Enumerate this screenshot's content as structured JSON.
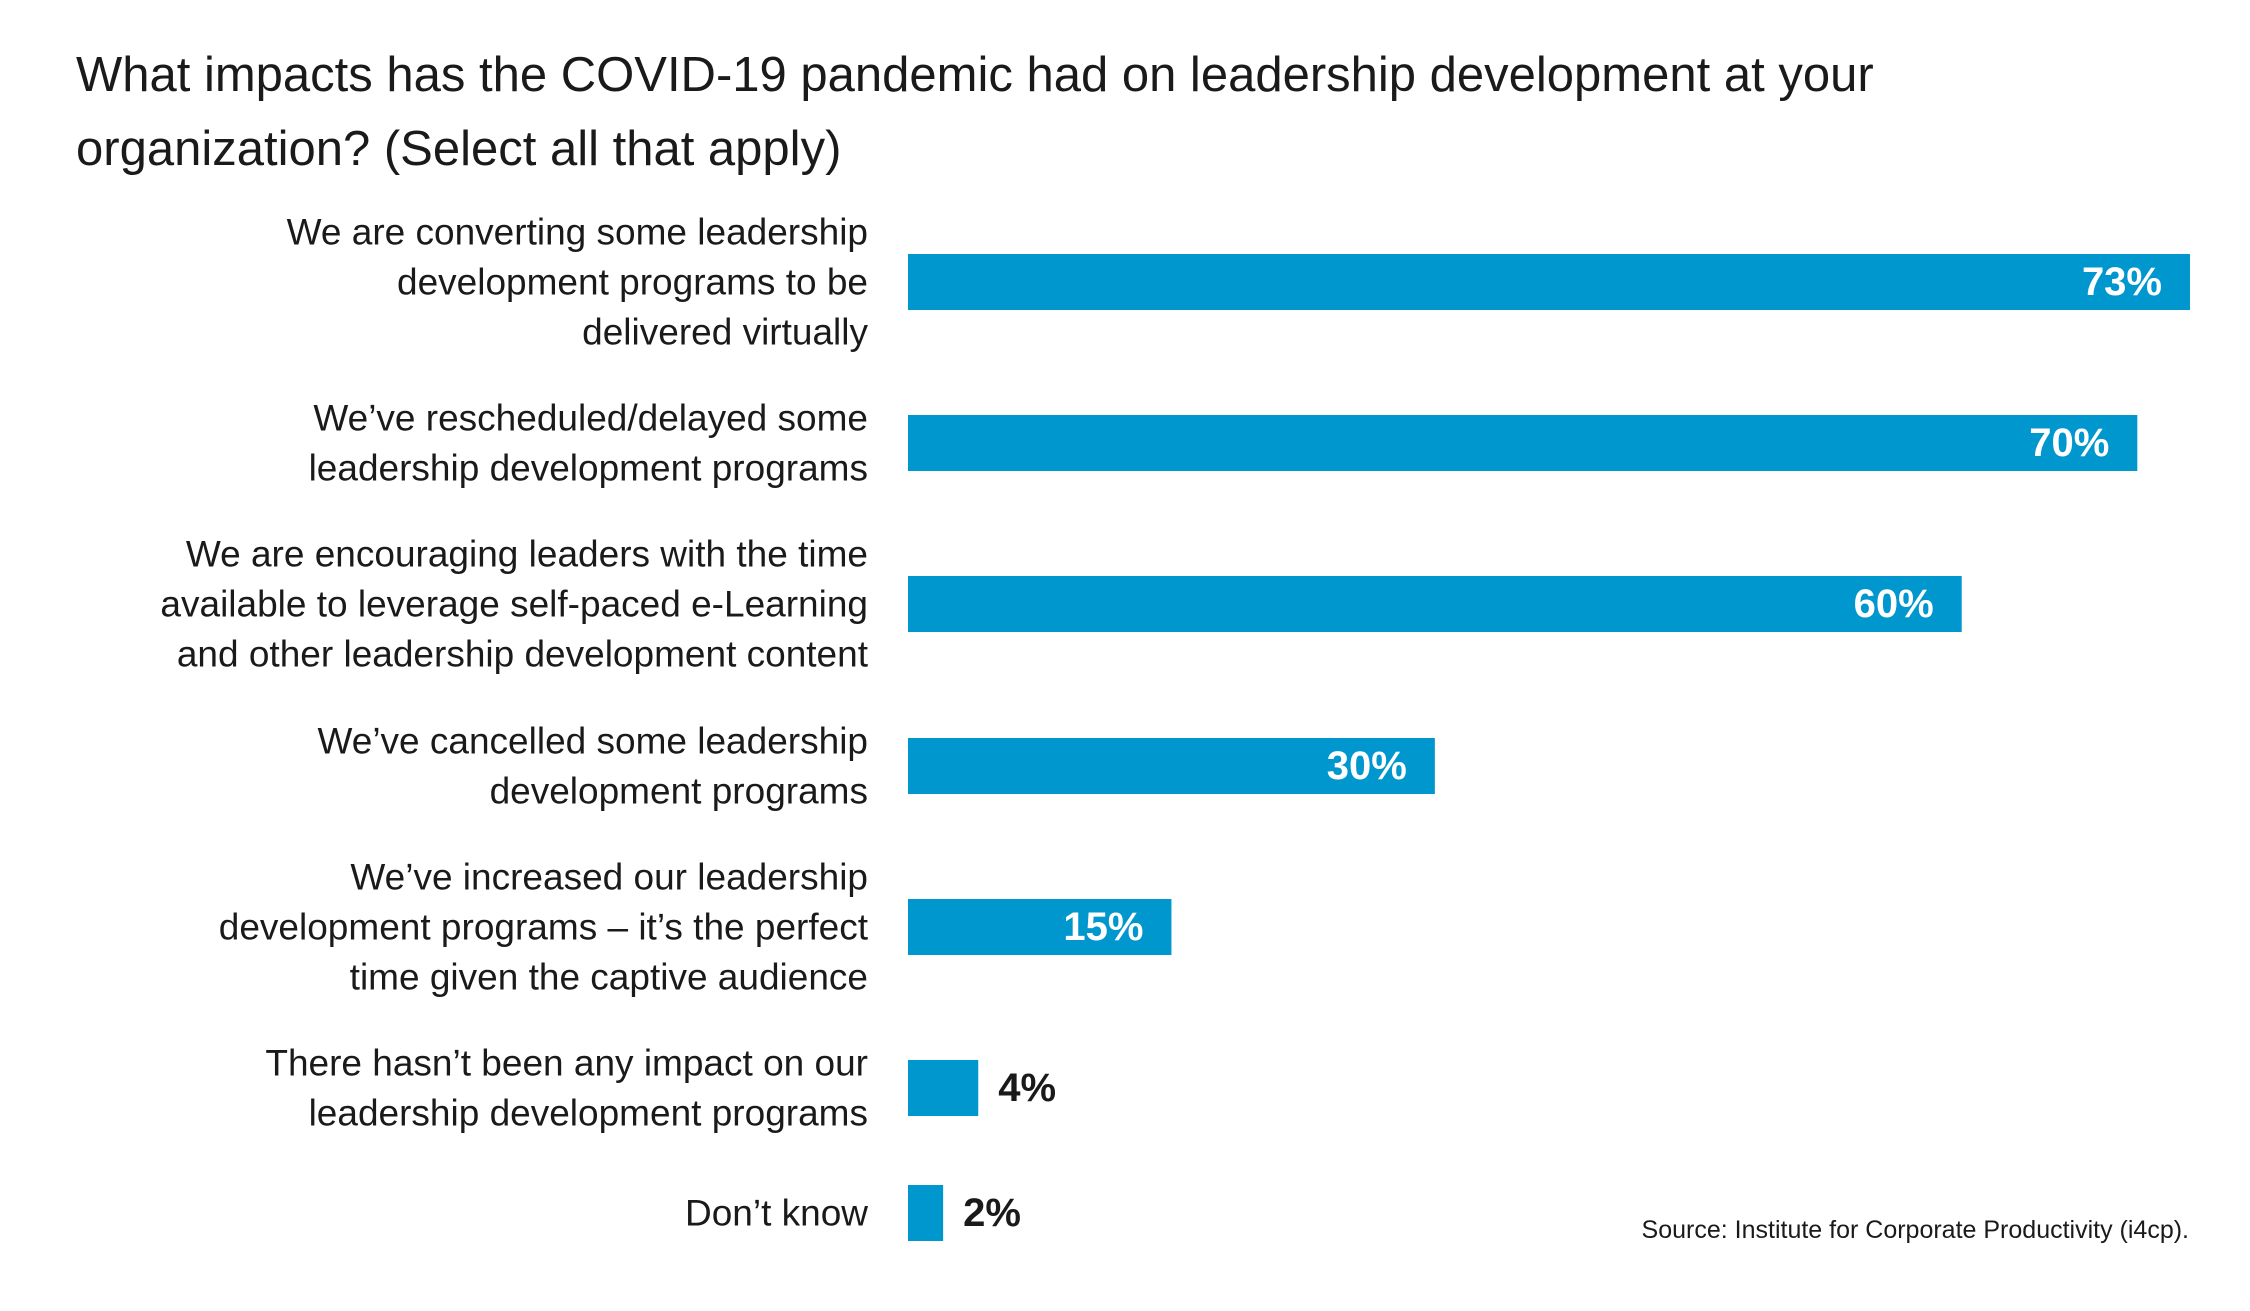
{
  "chart_data": {
    "type": "bar",
    "orientation": "horizontal",
    "title": "What impacts has the COVID-19 pandemic had on leadership development at your organization? (Select all that apply)",
    "categories": [
      [
        "We are converting some leadership",
        "development programs to be",
        "delivered virtually"
      ],
      [
        "We’ve rescheduled/delayed some",
        "leadership development programs"
      ],
      [
        "We are encouraging leaders with the time",
        "available to leverage self-paced e-Learning",
        "and other leadership development content"
      ],
      [
        "We’ve cancelled some leadership",
        "development programs"
      ],
      [
        "We’ve increased our leadership",
        "development programs – it’s the perfect",
        "time given the captive audience"
      ],
      [
        "There hasn’t been any impact on our",
        "leadership development programs"
      ],
      [
        "Don’t know"
      ]
    ],
    "values": [
      73,
      70,
      60,
      30,
      15,
      4,
      2
    ],
    "value_labels": [
      "73%",
      "70%",
      "60%",
      "30%",
      "15%",
      "4%",
      "2%"
    ],
    "xlim": [
      0,
      73
    ],
    "grid": false,
    "bar_color": "#0097CF",
    "label_inside_color": "#ffffff",
    "label_outside_color": "#1a1a1a"
  },
  "source": "Source: Institute for Corporate Productivity (i4cp)."
}
